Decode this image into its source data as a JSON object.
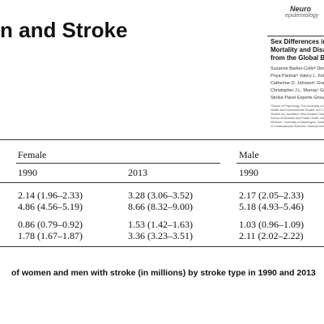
{
  "header": {
    "title": "n and Stroke"
  },
  "paper": {
    "journal": [
      "Neuro",
      "epidemiology"
    ],
    "title_lines": [
      "Sex Differences in",
      "Mortality and Disa",
      "from the Global Bu"
    ],
    "authors": [
      "Suzanne Barker-Colloᵃ Dern",
      "Priya Parmarᵃ Valery L. Feig",
      "Catherine O. Johnsonᶜ Gran",
      "Christopher J.L. Murrayᶜ Gre",
      "Stroke Panel Experts Group"
    ],
    "affiliations": [
      "ᵃSchool of Psychology, The University of A",
      "Health and Environmental Studies, AUT U",
      "Studies Inc, Auckland, New Zealand; Depar",
      "School of Medicine and Public Health, and",
      "Medicine, University of Washington, Seattle",
      "of Cardiovascular Sciences, National Heart"
    ]
  },
  "table": {
    "groups": [
      "Female",
      "Male"
    ],
    "years": [
      "1990",
      "2013",
      "1990"
    ],
    "rows": [
      [
        "2.14 (1.96–2.33)",
        "3.28 (3.06–3.52)",
        "2.17 (2.05–2.33)"
      ],
      [
        "4.86 (4.56–5.19)",
        "8.66 (8.32–9.00)",
        "5.18 (4.93–5.46)"
      ],
      [
        "0.86 (0.79–0.92)",
        "1.53 (1.42–1.63)",
        "1.03 (0.96–1.09)"
      ],
      [
        "1.78 (1.67–1.87)",
        "3.36 (3.23–3.51)",
        "2.11 (2.02–2.22)"
      ]
    ]
  },
  "caption": "of women and men with stroke (in millions) by stroke type in 1990 and 2013"
}
